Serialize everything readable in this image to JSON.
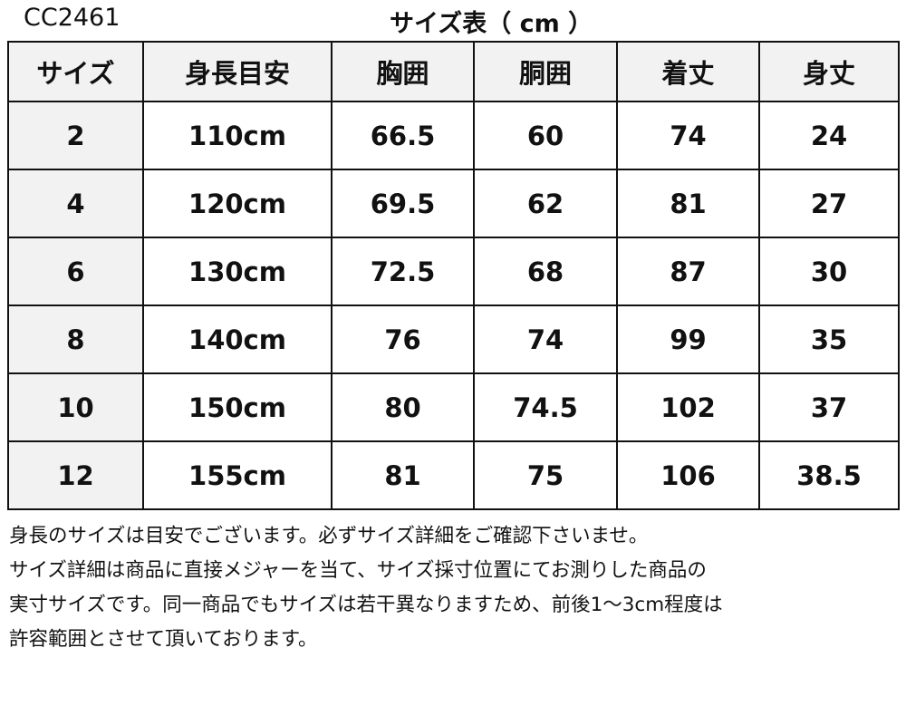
{
  "product_code": "CC2461",
  "title": "サイズ表（ cm ）",
  "colors": {
    "header_bg": "#f2f2f2",
    "border": "#111111"
  },
  "table": {
    "headers": [
      "サイズ",
      "身長目安",
      "胸囲",
      "胴囲",
      "着丈",
      "身丈"
    ],
    "rows": [
      [
        "2",
        "110cm",
        "66.5",
        "60",
        "74",
        "24"
      ],
      [
        "4",
        "120cm",
        "69.5",
        "62",
        "81",
        "27"
      ],
      [
        "6",
        "130cm",
        "72.5",
        "68",
        "87",
        "30"
      ],
      [
        "8",
        "140cm",
        "76",
        "74",
        "99",
        "35"
      ],
      [
        "10",
        "150cm",
        "80",
        "74.5",
        "102",
        "37"
      ],
      [
        "12",
        "155cm",
        "81",
        "75",
        "106",
        "38.5"
      ]
    ]
  },
  "notes": [
    "身長のサイズは目安でございます。必ずサイズ詳細をご確認下さいませ。",
    "サイズ詳細は商品に直接メジャーを当て、サイズ採寸位置にてお測りした商品の",
    "実寸サイズです。同一商品でもサイズは若干異なりますため、前後1～3cm程度は",
    "許容範囲とさせて頂いております。"
  ]
}
